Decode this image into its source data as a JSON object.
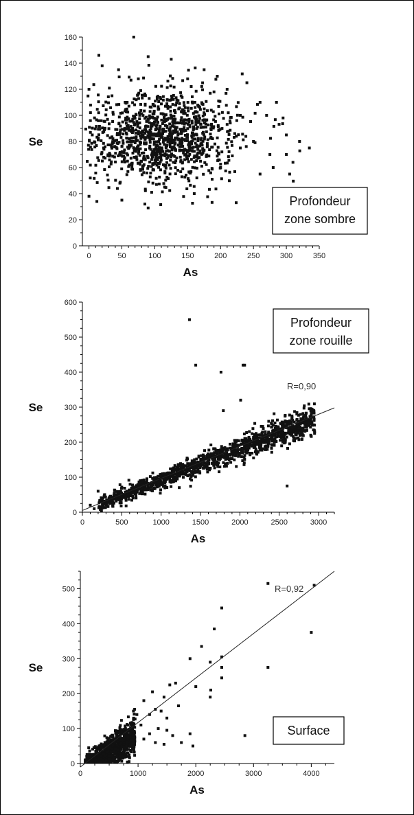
{
  "chart_data": [
    {
      "type": "scatter",
      "xlabel": "As",
      "ylabel": "Se",
      "xlim": [
        -10,
        350
      ],
      "ylim": [
        0,
        160
      ],
      "xticks": [
        "0",
        "50",
        "100",
        "150",
        "200",
        "250",
        "300",
        "350"
      ],
      "yticks": [
        "0",
        "20",
        "40",
        "60",
        "80",
        "100",
        "120",
        "140",
        "160"
      ],
      "legend_box": [
        "Profondeur",
        "zone sombre"
      ],
      "annotation": "",
      "cluster": {
        "count": 1100,
        "x_mean": 115,
        "x_sd": 55,
        "y_mean": 84,
        "y_sd": 18
      },
      "points": [
        [
          68,
          160
        ],
        [
          15,
          146
        ],
        [
          90,
          145
        ],
        [
          125,
          143
        ],
        [
          20,
          138
        ],
        [
          45,
          135
        ],
        [
          75,
          128
        ],
        [
          35,
          115
        ],
        [
          55,
          110
        ],
        [
          0,
          120
        ],
        [
          5,
          85
        ],
        [
          2,
          52
        ],
        [
          0,
          38
        ],
        [
          12,
          34
        ],
        [
          50,
          35
        ],
        [
          85,
          32
        ],
        [
          90,
          29
        ],
        [
          115,
          45
        ],
        [
          160,
          40
        ],
        [
          200,
          60
        ],
        [
          230,
          100
        ],
        [
          240,
          125
        ],
        [
          260,
          110
        ],
        [
          270,
          100
        ],
        [
          285,
          110
        ],
        [
          295,
          98
        ],
        [
          300,
          85
        ],
        [
          300,
          70
        ],
        [
          310,
          64
        ],
        [
          320,
          80
        ],
        [
          335,
          75
        ],
        [
          305,
          55
        ],
        [
          275,
          70
        ],
        [
          280,
          60
        ],
        [
          260,
          55
        ],
        [
          250,
          80
        ],
        [
          230,
          75
        ],
        [
          210,
          120
        ],
        [
          195,
          130
        ],
        [
          175,
          135
        ],
        [
          150,
          128
        ],
        [
          140,
          115
        ]
      ]
    },
    {
      "type": "scatter",
      "xlabel": "As",
      "ylabel": "Se",
      "xlim": [
        0,
        3200
      ],
      "ylim": [
        0,
        600
      ],
      "xticks": [
        "0",
        "500",
        "1000",
        "1500",
        "2000",
        "2500",
        "3000"
      ],
      "yticks": [
        "0",
        "100",
        "200",
        "300",
        "400",
        "500",
        "600"
      ],
      "legend_box": [
        "Profondeur",
        "zone rouille"
      ],
      "annotation": "R=0,90",
      "fit_line": {
        "x": [
          0,
          3200
        ],
        "y": [
          5,
          298
        ]
      },
      "cluster": {
        "count": 1300,
        "x_min": 200,
        "x_max": 2950,
        "slope": 0.088,
        "intercept": 5,
        "y_sd": 20
      },
      "points": [
        [
          1360,
          550
        ],
        [
          1440,
          420
        ],
        [
          2040,
          420
        ],
        [
          2060,
          420
        ],
        [
          1760,
          400
        ],
        [
          2010,
          320
        ],
        [
          1790,
          290
        ],
        [
          2600,
          75
        ],
        [
          100,
          20
        ],
        [
          150,
          10
        ],
        [
          200,
          60
        ],
        [
          2950,
          230
        ],
        [
          2900,
          220
        ],
        [
          2800,
          240
        ]
      ]
    },
    {
      "type": "scatter",
      "xlabel": "As",
      "ylabel": "Se",
      "xlim": [
        0,
        4400
      ],
      "ylim": [
        0,
        550
      ],
      "xticks": [
        "0",
        "1000",
        "2000",
        "3000",
        "4000"
      ],
      "yticks": [
        "0",
        "100",
        "200",
        "300",
        "400",
        "500"
      ],
      "legend_box": [
        "Surface"
      ],
      "annotation": "R=0,92",
      "fit_line": {
        "x": [
          0,
          4400
        ],
        "y": [
          -10,
          550
        ]
      },
      "cluster": {
        "count": 900,
        "x_min": 80,
        "x_max": 950,
        "slope": 0.1,
        "intercept": -15,
        "y_sd": 28
      },
      "points": [
        [
          3250,
          515
        ],
        [
          4050,
          510
        ],
        [
          4000,
          375
        ],
        [
          3250,
          275
        ],
        [
          2450,
          445
        ],
        [
          2320,
          385
        ],
        [
          2450,
          305
        ],
        [
          2250,
          290
        ],
        [
          2450,
          275
        ],
        [
          2450,
          245
        ],
        [
          2100,
          335
        ],
        [
          1900,
          300
        ],
        [
          2000,
          220
        ],
        [
          2260,
          210
        ],
        [
          2250,
          190
        ],
        [
          2850,
          80
        ],
        [
          1550,
          225
        ],
        [
          1650,
          230
        ],
        [
          1700,
          165
        ],
        [
          1450,
          190
        ],
        [
          1400,
          150
        ],
        [
          1300,
          155
        ],
        [
          1200,
          140
        ],
        [
          1900,
          85
        ],
        [
          1950,
          50
        ],
        [
          1750,
          60
        ],
        [
          1600,
          80
        ],
        [
          1450,
          55
        ],
        [
          1500,
          95
        ],
        [
          1300,
          60
        ],
        [
          1200,
          85
        ],
        [
          1100,
          70
        ],
        [
          1050,
          110
        ],
        [
          980,
          140
        ],
        [
          920,
          150
        ],
        [
          1100,
          180
        ],
        [
          1250,
          205
        ],
        [
          1350,
          100
        ],
        [
          1500,
          130
        ]
      ]
    }
  ]
}
